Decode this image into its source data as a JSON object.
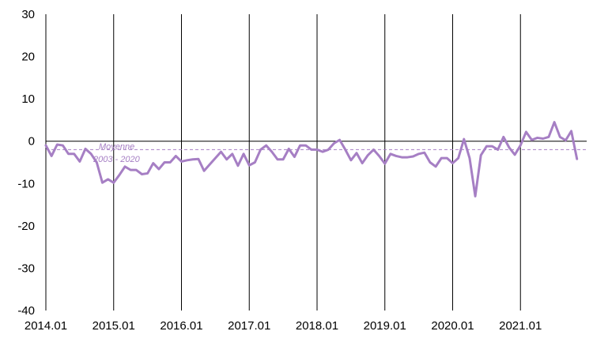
{
  "chart_data": {
    "type": "line",
    "title": "",
    "xlabel": "",
    "ylabel": "",
    "ylim": [
      -40,
      30
    ],
    "yticks": [
      30,
      20,
      10,
      0,
      -10,
      -20,
      -30,
      -40
    ],
    "x_tick_labels": [
      "2014.01",
      "2015.01",
      "2016.01",
      "2017.01",
      "2018.01",
      "2019.01",
      "2020.01",
      "2021.01"
    ],
    "grid": "vertical lines at each year start",
    "colors": {
      "series": "#a67fc4",
      "reference": "#a67fc4",
      "axis": "#000000"
    },
    "reference_line": {
      "value": -2,
      "style": "dashed",
      "label_line1": "Moyenne",
      "label_line2": "2003 - 2020"
    },
    "series": [
      {
        "values": [
          -1.0,
          -3.5,
          -0.8,
          -1.0,
          -3.0,
          -3.0,
          -4.8,
          -1.8,
          -3.0,
          -5.0,
          -9.8,
          -9.0,
          -9.8,
          -8.0,
          -6.0,
          -6.8,
          -6.8,
          -7.8,
          -7.6,
          -5.2,
          -6.6,
          -5.0,
          -5.0,
          -3.5,
          -4.8,
          -4.5,
          -4.3,
          -4.2,
          -7.0,
          -5.5,
          -4.0,
          -2.5,
          -4.3,
          -3.0,
          -5.8,
          -3.0,
          -5.7,
          -5.0,
          -2.0,
          -1.0,
          -2.5,
          -4.3,
          -4.3,
          -1.8,
          -3.7,
          -1.0,
          -1.0,
          -2.0,
          -2.0,
          -2.5,
          -2.0,
          -0.5,
          0.3,
          -2.0,
          -4.5,
          -2.8,
          -5.2,
          -3.3,
          -2.0,
          -3.5,
          -5.3,
          -3.0,
          -3.5,
          -3.8,
          -3.8,
          -3.6,
          -3.0,
          -2.7,
          -5.0,
          -6.0,
          -4.0,
          -4.0,
          -5.2,
          -4.0,
          0.5,
          -4.0,
          -13.0,
          -3.3,
          -1.2,
          -1.2,
          -2.0,
          1.0,
          -1.5,
          -3.2,
          -1.0,
          2.2,
          0.3,
          0.8,
          0.6,
          1.0,
          4.5,
          1.0,
          0.2,
          2.4,
          -4.2
        ]
      }
    ]
  }
}
